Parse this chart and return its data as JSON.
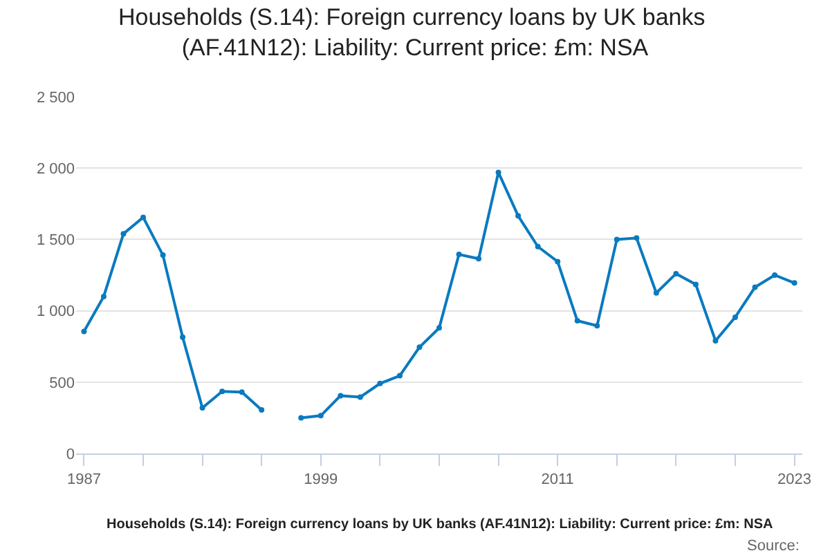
{
  "chart_data": {
    "type": "line",
    "title": "Households (S.14): Foreign currency loans by UK banks (AF.41N12): Liability: Current price: £m: NSA",
    "x": [
      1987,
      1988,
      1989,
      1990,
      1991,
      1992,
      1993,
      1994,
      1995,
      1996,
      1997,
      1998,
      1999,
      2000,
      2001,
      2002,
      2003,
      2004,
      2005,
      2006,
      2007,
      2008,
      2009,
      2010,
      2011,
      2012,
      2013,
      2014,
      2015,
      2016,
      2017,
      2018,
      2019,
      2020,
      2021,
      2022,
      2023
    ],
    "series": [
      {
        "color": "#0a7abf",
        "values": [
          855,
          1100,
          1540,
          1655,
          1390,
          815,
          320,
          435,
          430,
          305,
          null,
          250,
          265,
          405,
          395,
          490,
          545,
          745,
          880,
          1395,
          1365,
          1970,
          1665,
          1450,
          1345,
          930,
          895,
          1500,
          1510,
          1125,
          1260,
          1185,
          790,
          955,
          1165,
          1250,
          1195
        ]
      }
    ],
    "xlim": [
      1986.6,
      2023.4
    ],
    "xticks": [
      {
        "value": 1987,
        "label": "1987"
      },
      {
        "value": 1990,
        "label": null
      },
      {
        "value": 1993,
        "label": null
      },
      {
        "value": 1996,
        "label": null
      },
      {
        "value": 1999,
        "label": "1999"
      },
      {
        "value": 2002,
        "label": null
      },
      {
        "value": 2005,
        "label": null
      },
      {
        "value": 2008,
        "label": null
      },
      {
        "value": 2011,
        "label": "2011"
      },
      {
        "value": 2014,
        "label": null
      },
      {
        "value": 2017,
        "label": null
      },
      {
        "value": 2020,
        "label": null
      },
      {
        "value": 2023,
        "label": "2023"
      }
    ],
    "ylim": [
      0,
      2500
    ],
    "yticks": [
      {
        "value": 0,
        "label": "0"
      },
      {
        "value": 500,
        "label": "500"
      },
      {
        "value": 1000,
        "label": "1 000"
      },
      {
        "value": 1500,
        "label": "1 500"
      },
      {
        "value": 2000,
        "label": "2 000"
      },
      {
        "value": 2500,
        "label": "2 500"
      }
    ],
    "grid": "y",
    "marker": "circle",
    "line_style": "solid",
    "annotations": [
      "Households (S.14): Foreign currency loans by UK banks (AF.41N12): Liability: Current price: £m: NSA",
      "Source:"
    ]
  }
}
